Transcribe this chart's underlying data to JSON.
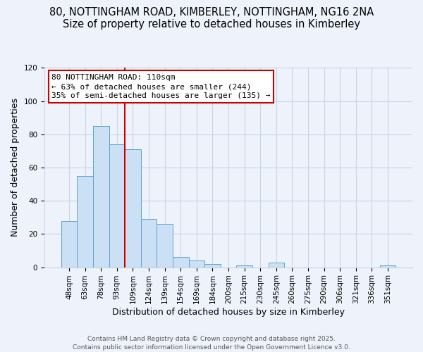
{
  "title1": "80, NOTTINGHAM ROAD, KIMBERLEY, NOTTINGHAM, NG16 2NA",
  "title2": "Size of property relative to detached houses in Kimberley",
  "xlabel": "Distribution of detached houses by size in Kimberley",
  "ylabel": "Number of detached properties",
  "bar_labels": [
    "48sqm",
    "63sqm",
    "78sqm",
    "93sqm",
    "109sqm",
    "124sqm",
    "139sqm",
    "154sqm",
    "169sqm",
    "184sqm",
    "200sqm",
    "215sqm",
    "230sqm",
    "245sqm",
    "260sqm",
    "275sqm",
    "290sqm",
    "306sqm",
    "321sqm",
    "336sqm",
    "351sqm"
  ],
  "bar_values": [
    28,
    55,
    85,
    74,
    71,
    29,
    26,
    6,
    4,
    2,
    0,
    1,
    0,
    3,
    0,
    0,
    0,
    0,
    0,
    0,
    1
  ],
  "bar_color": "#cce0f5",
  "bar_edgecolor": "#5ba3d0",
  "ylim": [
    0,
    120
  ],
  "yticks": [
    0,
    20,
    40,
    60,
    80,
    100,
    120
  ],
  "vline_color": "#cc0000",
  "annotation_title": "80 NOTTINGHAM ROAD: 110sqm",
  "annotation_line1": "← 63% of detached houses are smaller (244)",
  "annotation_line2": "35% of semi-detached houses are larger (135) →",
  "annotation_box_color": "#ffffff",
  "annotation_box_edgecolor": "#cc0000",
  "footer1": "Contains HM Land Registry data © Crown copyright and database right 2025.",
  "footer2": "Contains public sector information licensed under the Open Government Licence v3.0.",
  "bg_color": "#eef2fb",
  "grid_color": "#c8d4e8",
  "title1_fontsize": 10.5,
  "title2_fontsize": 9.5,
  "tick_fontsize": 7.5,
  "axis_label_fontsize": 9,
  "annotation_fontsize": 8,
  "footer_fontsize": 6.5
}
